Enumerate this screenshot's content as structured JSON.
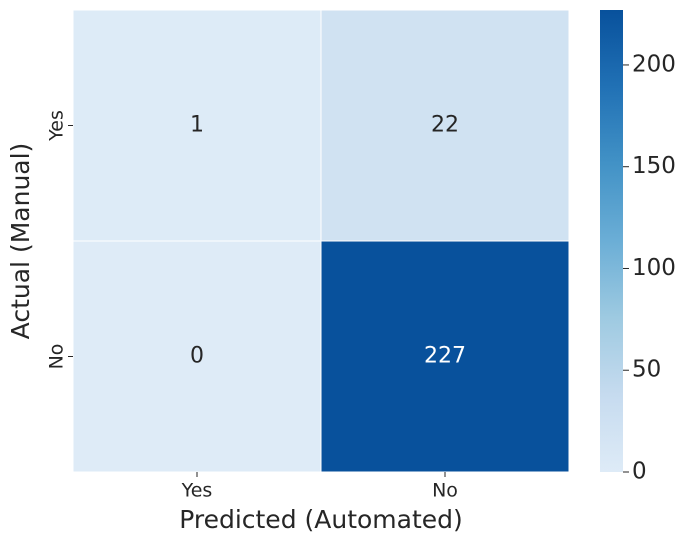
{
  "chart_data": {
    "type": "heatmap",
    "xlabel": "Predicted (Automated)",
    "ylabel": "Actual (Manual)",
    "x_categories": [
      "Yes",
      "No"
    ],
    "y_categories": [
      "Yes",
      "No"
    ],
    "values": [
      [
        1,
        22
      ],
      [
        0,
        227
      ]
    ],
    "clim": [
      0,
      227
    ],
    "cticks": [
      0,
      50,
      100,
      150,
      200
    ],
    "colormap": [
      "#deebf7",
      "#c6dbef",
      "#9ecae1",
      "#6baed6",
      "#4292c6",
      "#2171b5",
      "#08519c"
    ]
  }
}
